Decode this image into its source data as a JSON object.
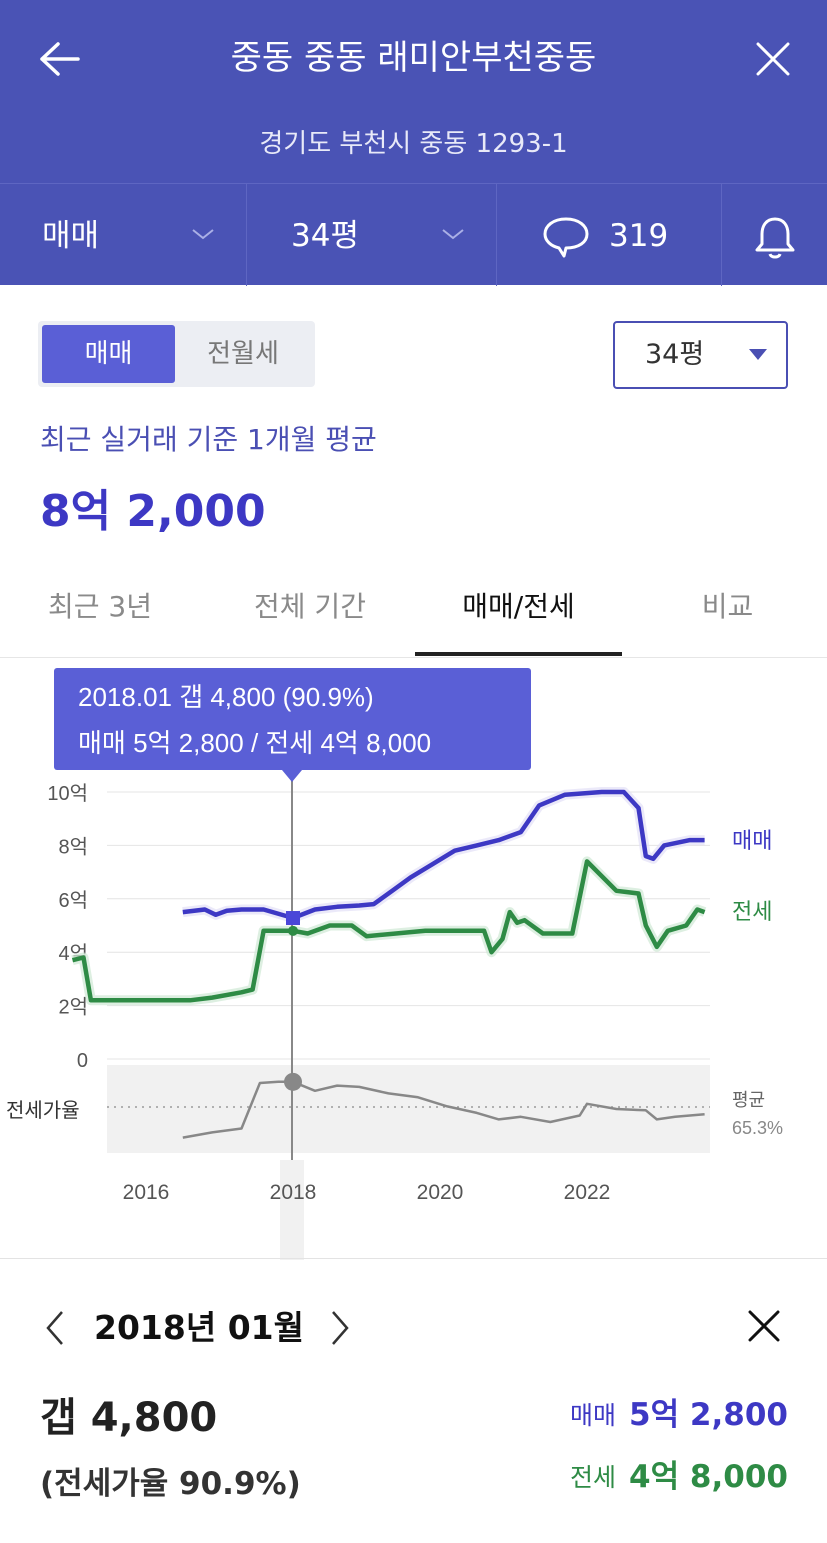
{
  "header": {
    "title": "중동 중동 래미안부천중동",
    "address": "경기도 부천시 중동 1293-1",
    "trade_type": "매매",
    "size": "34평",
    "comment_count": "319"
  },
  "segment": {
    "active": "매매",
    "inactive": "전월세"
  },
  "size_dropdown": "34평",
  "recent": {
    "label": "최근 실거래 기준 1개월 평균",
    "price": "8억 2,000"
  },
  "tabs": [
    {
      "label": "최근 3년",
      "active": false
    },
    {
      "label": "전체 기간",
      "active": false
    },
    {
      "label": "매매/전세",
      "active": true
    },
    {
      "label": "비교",
      "active": false
    }
  ],
  "tooltip": {
    "line1": "2018.01  갭 4,800 (90.9%)",
    "line2": "매매 5억 2,800 / 전세 4억 8,000"
  },
  "colors": {
    "header": "#4a53b5",
    "sale": "#3d38c4",
    "jeonse": "#2e8b45",
    "ratio": "#888888"
  },
  "chart_data": {
    "type": "line",
    "y_ticks": [
      "10억",
      "8억",
      "6억",
      "4억",
      "2억",
      "0"
    ],
    "x_ticks": [
      "2016",
      "2018",
      "2020",
      "2022"
    ],
    "ylim": [
      0,
      10
    ],
    "y_unit": "억",
    "ratio_label": "전세가율",
    "avg_label": "평균",
    "avg_value": "65.3%",
    "selected": {
      "x": 2018.0,
      "sale": 5.28,
      "jeonse": 4.8,
      "ratio": 90.9
    },
    "series": [
      {
        "name": "매매",
        "points": [
          [
            2016.5,
            5.5
          ],
          [
            2016.8,
            5.6
          ],
          [
            2016.95,
            5.4
          ],
          [
            2017.1,
            5.55
          ],
          [
            2017.3,
            5.6
          ],
          [
            2017.6,
            5.6
          ],
          [
            2018.0,
            5.28
          ],
          [
            2018.3,
            5.6
          ],
          [
            2018.6,
            5.7
          ],
          [
            2018.9,
            5.75
          ],
          [
            2019.1,
            5.8
          ],
          [
            2019.35,
            6.3
          ],
          [
            2019.6,
            6.8
          ],
          [
            2019.9,
            7.3
          ],
          [
            2020.2,
            7.8
          ],
          [
            2020.5,
            8.0
          ],
          [
            2020.8,
            8.2
          ],
          [
            2021.1,
            8.5
          ],
          [
            2021.35,
            9.5
          ],
          [
            2021.7,
            9.9
          ],
          [
            2022.2,
            10.0
          ],
          [
            2022.5,
            10.0
          ],
          [
            2022.7,
            9.4
          ],
          [
            2022.8,
            7.6
          ],
          [
            2022.9,
            7.5
          ],
          [
            2023.05,
            8.0
          ],
          [
            2023.4,
            8.2
          ],
          [
            2023.6,
            8.2
          ]
        ]
      },
      {
        "name": "전세",
        "points": [
          [
            2015.0,
            3.7
          ],
          [
            2015.15,
            3.8
          ],
          [
            2015.25,
            2.2
          ],
          [
            2015.7,
            2.2
          ],
          [
            2016.2,
            2.2
          ],
          [
            2016.6,
            2.2
          ],
          [
            2016.9,
            2.3
          ],
          [
            2017.3,
            2.5
          ],
          [
            2017.45,
            2.6
          ],
          [
            2017.6,
            4.8
          ],
          [
            2017.9,
            4.8
          ],
          [
            2018.0,
            4.8
          ],
          [
            2018.2,
            4.7
          ],
          [
            2018.5,
            5.0
          ],
          [
            2018.8,
            5.0
          ],
          [
            2019.0,
            4.6
          ],
          [
            2019.4,
            4.7
          ],
          [
            2019.8,
            4.8
          ],
          [
            2020.2,
            4.8
          ],
          [
            2020.6,
            4.8
          ],
          [
            2020.7,
            4.0
          ],
          [
            2020.85,
            4.5
          ],
          [
            2020.95,
            5.5
          ],
          [
            2021.05,
            5.1
          ],
          [
            2021.15,
            5.2
          ],
          [
            2021.4,
            4.7
          ],
          [
            2021.8,
            4.7
          ],
          [
            2022.0,
            7.4
          ],
          [
            2022.4,
            6.3
          ],
          [
            2022.7,
            6.2
          ],
          [
            2022.8,
            5.0
          ],
          [
            2022.95,
            4.2
          ],
          [
            2023.1,
            4.8
          ],
          [
            2023.35,
            5.0
          ],
          [
            2023.5,
            5.6
          ],
          [
            2023.6,
            5.5
          ]
        ]
      },
      {
        "name": "전세가율",
        "points": [
          [
            2016.5,
            48
          ],
          [
            2016.9,
            52
          ],
          [
            2017.3,
            55
          ],
          [
            2017.55,
            90
          ],
          [
            2017.8,
            91
          ],
          [
            2018.0,
            90.9
          ],
          [
            2018.3,
            84
          ],
          [
            2018.6,
            88
          ],
          [
            2018.9,
            87
          ],
          [
            2019.3,
            82
          ],
          [
            2019.7,
            79
          ],
          [
            2020.1,
            72
          ],
          [
            2020.5,
            67
          ],
          [
            2020.8,
            62
          ],
          [
            2021.1,
            64
          ],
          [
            2021.5,
            60
          ],
          [
            2021.9,
            65
          ],
          [
            2022.0,
            74
          ],
          [
            2022.4,
            70
          ],
          [
            2022.8,
            69
          ],
          [
            2022.95,
            62
          ],
          [
            2023.2,
            64
          ],
          [
            2023.6,
            66
          ]
        ]
      }
    ]
  },
  "detail": {
    "date": "2018년 01월",
    "gap": "갭 4,800",
    "ratio": "(전세가율 90.9%)",
    "sale_label": "매매",
    "sale_value": "5억 2,800",
    "jeonse_label": "전세",
    "jeonse_value": "4억 8,000"
  }
}
